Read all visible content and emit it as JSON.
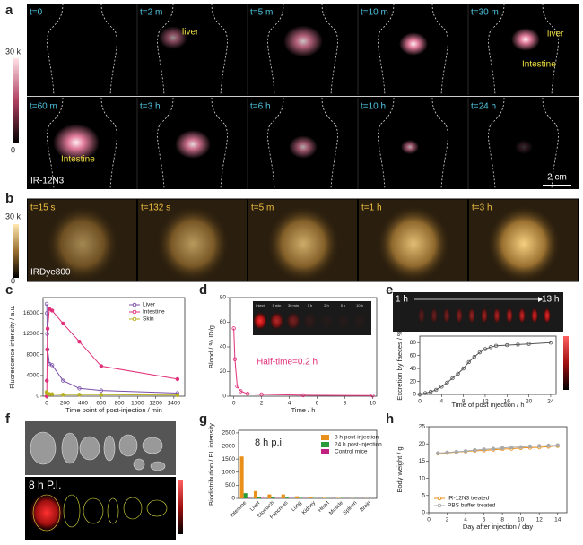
{
  "panel_labels": [
    "a",
    "b",
    "c",
    "d",
    "e",
    "f",
    "g",
    "h"
  ],
  "panel_a": {
    "times": [
      "t=0",
      "t=2 m",
      "t=5 m",
      "t=10 m",
      "t=30 m",
      "t=60 m",
      "t=3 h",
      "t=6 h",
      "t=10 h",
      "t=24 h"
    ],
    "annotations": [
      "liver",
      "liver",
      "Intestine",
      "Intestine"
    ],
    "probe": "IR-12N3",
    "scale_bar": "2 cm",
    "colorbar": [
      "30 k",
      "0"
    ]
  },
  "panel_b": {
    "times": [
      "t=15 s",
      "t=132 s",
      "t=5 m",
      "t=1 h",
      "t=3 h"
    ],
    "probe": "IRDye800",
    "colorbar": [
      "30 k",
      "0"
    ]
  },
  "panel_d_inset": [
    "Inject",
    "5 min",
    "30 min",
    "1 h",
    "2 h",
    "5 h",
    "10 h"
  ],
  "panel_e_strip": [
    "1 h",
    "13 h"
  ],
  "panel_f": {
    "label": "8 h P.I."
  },
  "chart_data": [
    {
      "type": "line",
      "xlabel": "Time point of post-injection / min",
      "ylabel": "Fluorescence intensity / a.u.",
      "x": [
        0,
        2,
        5,
        10,
        30,
        60,
        180,
        360,
        600,
        1440
      ],
      "series": [
        {
          "name": "Liver",
          "color": "#7b4fa8",
          "values": [
            17800,
            16000,
            12000,
            9000,
            6200,
            6000,
            3000,
            1500,
            1100,
            600
          ]
        },
        {
          "name": "Intestine",
          "color": "#e0307a",
          "values": [
            0,
            3000,
            9000,
            13000,
            16800,
            16500,
            14000,
            10500,
            5800,
            3300
          ]
        },
        {
          "name": "Skin",
          "color": "#b8b020",
          "values": [
            800,
            700,
            600,
            500,
            400,
            400,
            300,
            300,
            300,
            200
          ]
        }
      ],
      "xlim": [
        -40,
        1520
      ],
      "ylim": [
        0,
        19000
      ],
      "xticks": [
        0,
        200,
        400,
        600,
        800,
        1000,
        1200,
        1400
      ],
      "yticks": [
        0,
        4000,
        8000,
        12000,
        16000
      ],
      "legend": "upper right"
    },
    {
      "type": "line",
      "xlabel": "Time / h",
      "ylabel": "Blood / % ID/g",
      "annotation": "Half-time=0.2 h",
      "x": [
        0,
        0.083,
        0.25,
        0.5,
        1,
        2,
        5,
        10
      ],
      "series": [
        {
          "color": "#e0307a",
          "values": [
            55,
            30,
            8,
            4,
            2,
            1.5,
            0.8,
            0.5
          ]
        }
      ],
      "xlim": [
        -0.3,
        10.3
      ],
      "ylim": [
        0,
        80
      ],
      "xticks": [
        0,
        2,
        4,
        6,
        8,
        10
      ],
      "yticks": [
        0,
        20,
        40,
        60,
        80
      ]
    },
    {
      "type": "line",
      "xlabel": "Time of post injection / h",
      "ylabel": "Excretion by faeces / %",
      "x": [
        0,
        1,
        2,
        3,
        4,
        5,
        6,
        7,
        8,
        9,
        10,
        11,
        12,
        13,
        14,
        16,
        18,
        20,
        24
      ],
      "series": [
        {
          "color": "#555555",
          "values": [
            0,
            2,
            4,
            7,
            12,
            18,
            25,
            32,
            40,
            50,
            58,
            65,
            70,
            73,
            75,
            76,
            77,
            78,
            80
          ]
        }
      ],
      "xlim": [
        0,
        25
      ],
      "ylim": [
        0,
        90
      ],
      "xticks": [
        0,
        4,
        8,
        12,
        16,
        20,
        24
      ],
      "yticks": [
        0,
        20,
        40,
        60,
        80
      ]
    },
    {
      "type": "bar",
      "title": "8 h p.i.",
      "ylabel": "Biodistribution / PL intensity",
      "categories": [
        "Intestine",
        "Liver",
        "Stomach",
        "Pancreas",
        "Lung",
        "Kidney",
        "Heart",
        "Muscle",
        "Spleen",
        "Brain"
      ],
      "series": [
        {
          "name": "8 h post-injection",
          "color": "#e8901a",
          "values": [
            1600,
            280,
            150,
            150,
            80,
            40,
            20,
            15,
            10,
            5
          ]
        },
        {
          "name": "24 h post-injection",
          "color": "#2a9a3a",
          "values": [
            200,
            60,
            40,
            30,
            20,
            15,
            10,
            8,
            5,
            3
          ]
        },
        {
          "name": "Control mice",
          "color": "#c02080",
          "values": [
            20,
            15,
            10,
            10,
            8,
            5,
            5,
            5,
            3,
            2
          ]
        }
      ],
      "ylim": [
        0,
        2600
      ],
      "yticks": [
        0,
        500,
        1000,
        1500,
        2000,
        2500
      ],
      "legend": "upper right"
    },
    {
      "type": "line",
      "xlabel": "Day after injection / day",
      "ylabel": "Body weight / g",
      "x": [
        1,
        2,
        3,
        4,
        5,
        6,
        7,
        8,
        9,
        10,
        11,
        12,
        13,
        14
      ],
      "series": [
        {
          "name": "IR-12N3 treated",
          "color": "#e8901a",
          "values": [
            17.2,
            17.4,
            17.6,
            17.8,
            18,
            18.1,
            18.3,
            18.5,
            18.6,
            18.8,
            18.9,
            19,
            19.2,
            19.4
          ]
        },
        {
          "name": "PBS buffer treated",
          "color": "#aaaaaa",
          "values": [
            17.3,
            17.5,
            17.7,
            17.9,
            18.2,
            18.4,
            18.6,
            18.8,
            19,
            19.1,
            19.3,
            19.4,
            19.5,
            19.6
          ]
        }
      ],
      "xlim": [
        0,
        15
      ],
      "ylim": [
        0,
        25
      ],
      "xticks": [
        0,
        2,
        4,
        6,
        8,
        10,
        12,
        14
      ],
      "yticks": [
        0,
        5,
        10,
        15,
        20,
        25
      ],
      "legend": "lower left"
    }
  ]
}
